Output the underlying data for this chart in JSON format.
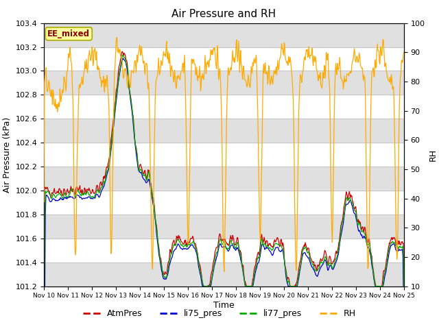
{
  "title": "Air Pressure and RH",
  "ylabel_left": "Air Pressure (kPa)",
  "ylabel_right": "RH",
  "xlabel": "Time",
  "ylim_left": [
    101.2,
    103.4
  ],
  "ylim_right": [
    10,
    100
  ],
  "yticks_left": [
    101.2,
    101.4,
    101.6,
    101.8,
    102.0,
    102.2,
    102.4,
    102.6,
    102.8,
    103.0,
    103.2,
    103.4
  ],
  "yticks_right": [
    10,
    20,
    30,
    40,
    50,
    60,
    70,
    80,
    90,
    100
  ],
  "xtick_labels": [
    "Nov 10",
    "Nov 11",
    "Nov 12",
    "Nov 13",
    "Nov 14",
    "Nov 15",
    "Nov 16",
    "Nov 17",
    "Nov 18",
    "Nov 19",
    "Nov 20",
    "Nov 21",
    "Nov 22",
    "Nov 23",
    "Nov 24",
    "Nov 25"
  ],
  "colors": {
    "AtmPres": "#cc0000",
    "li75_pres": "#0000cc",
    "li77_pres": "#00aa00",
    "RH": "#ffaa00"
  },
  "annotation_text": "EE_mixed",
  "annotation_color": "#8b0000",
  "annotation_bg": "#ffffa0",
  "bg_stripe_color": "#e0e0e0",
  "legend_linestyle": "--"
}
